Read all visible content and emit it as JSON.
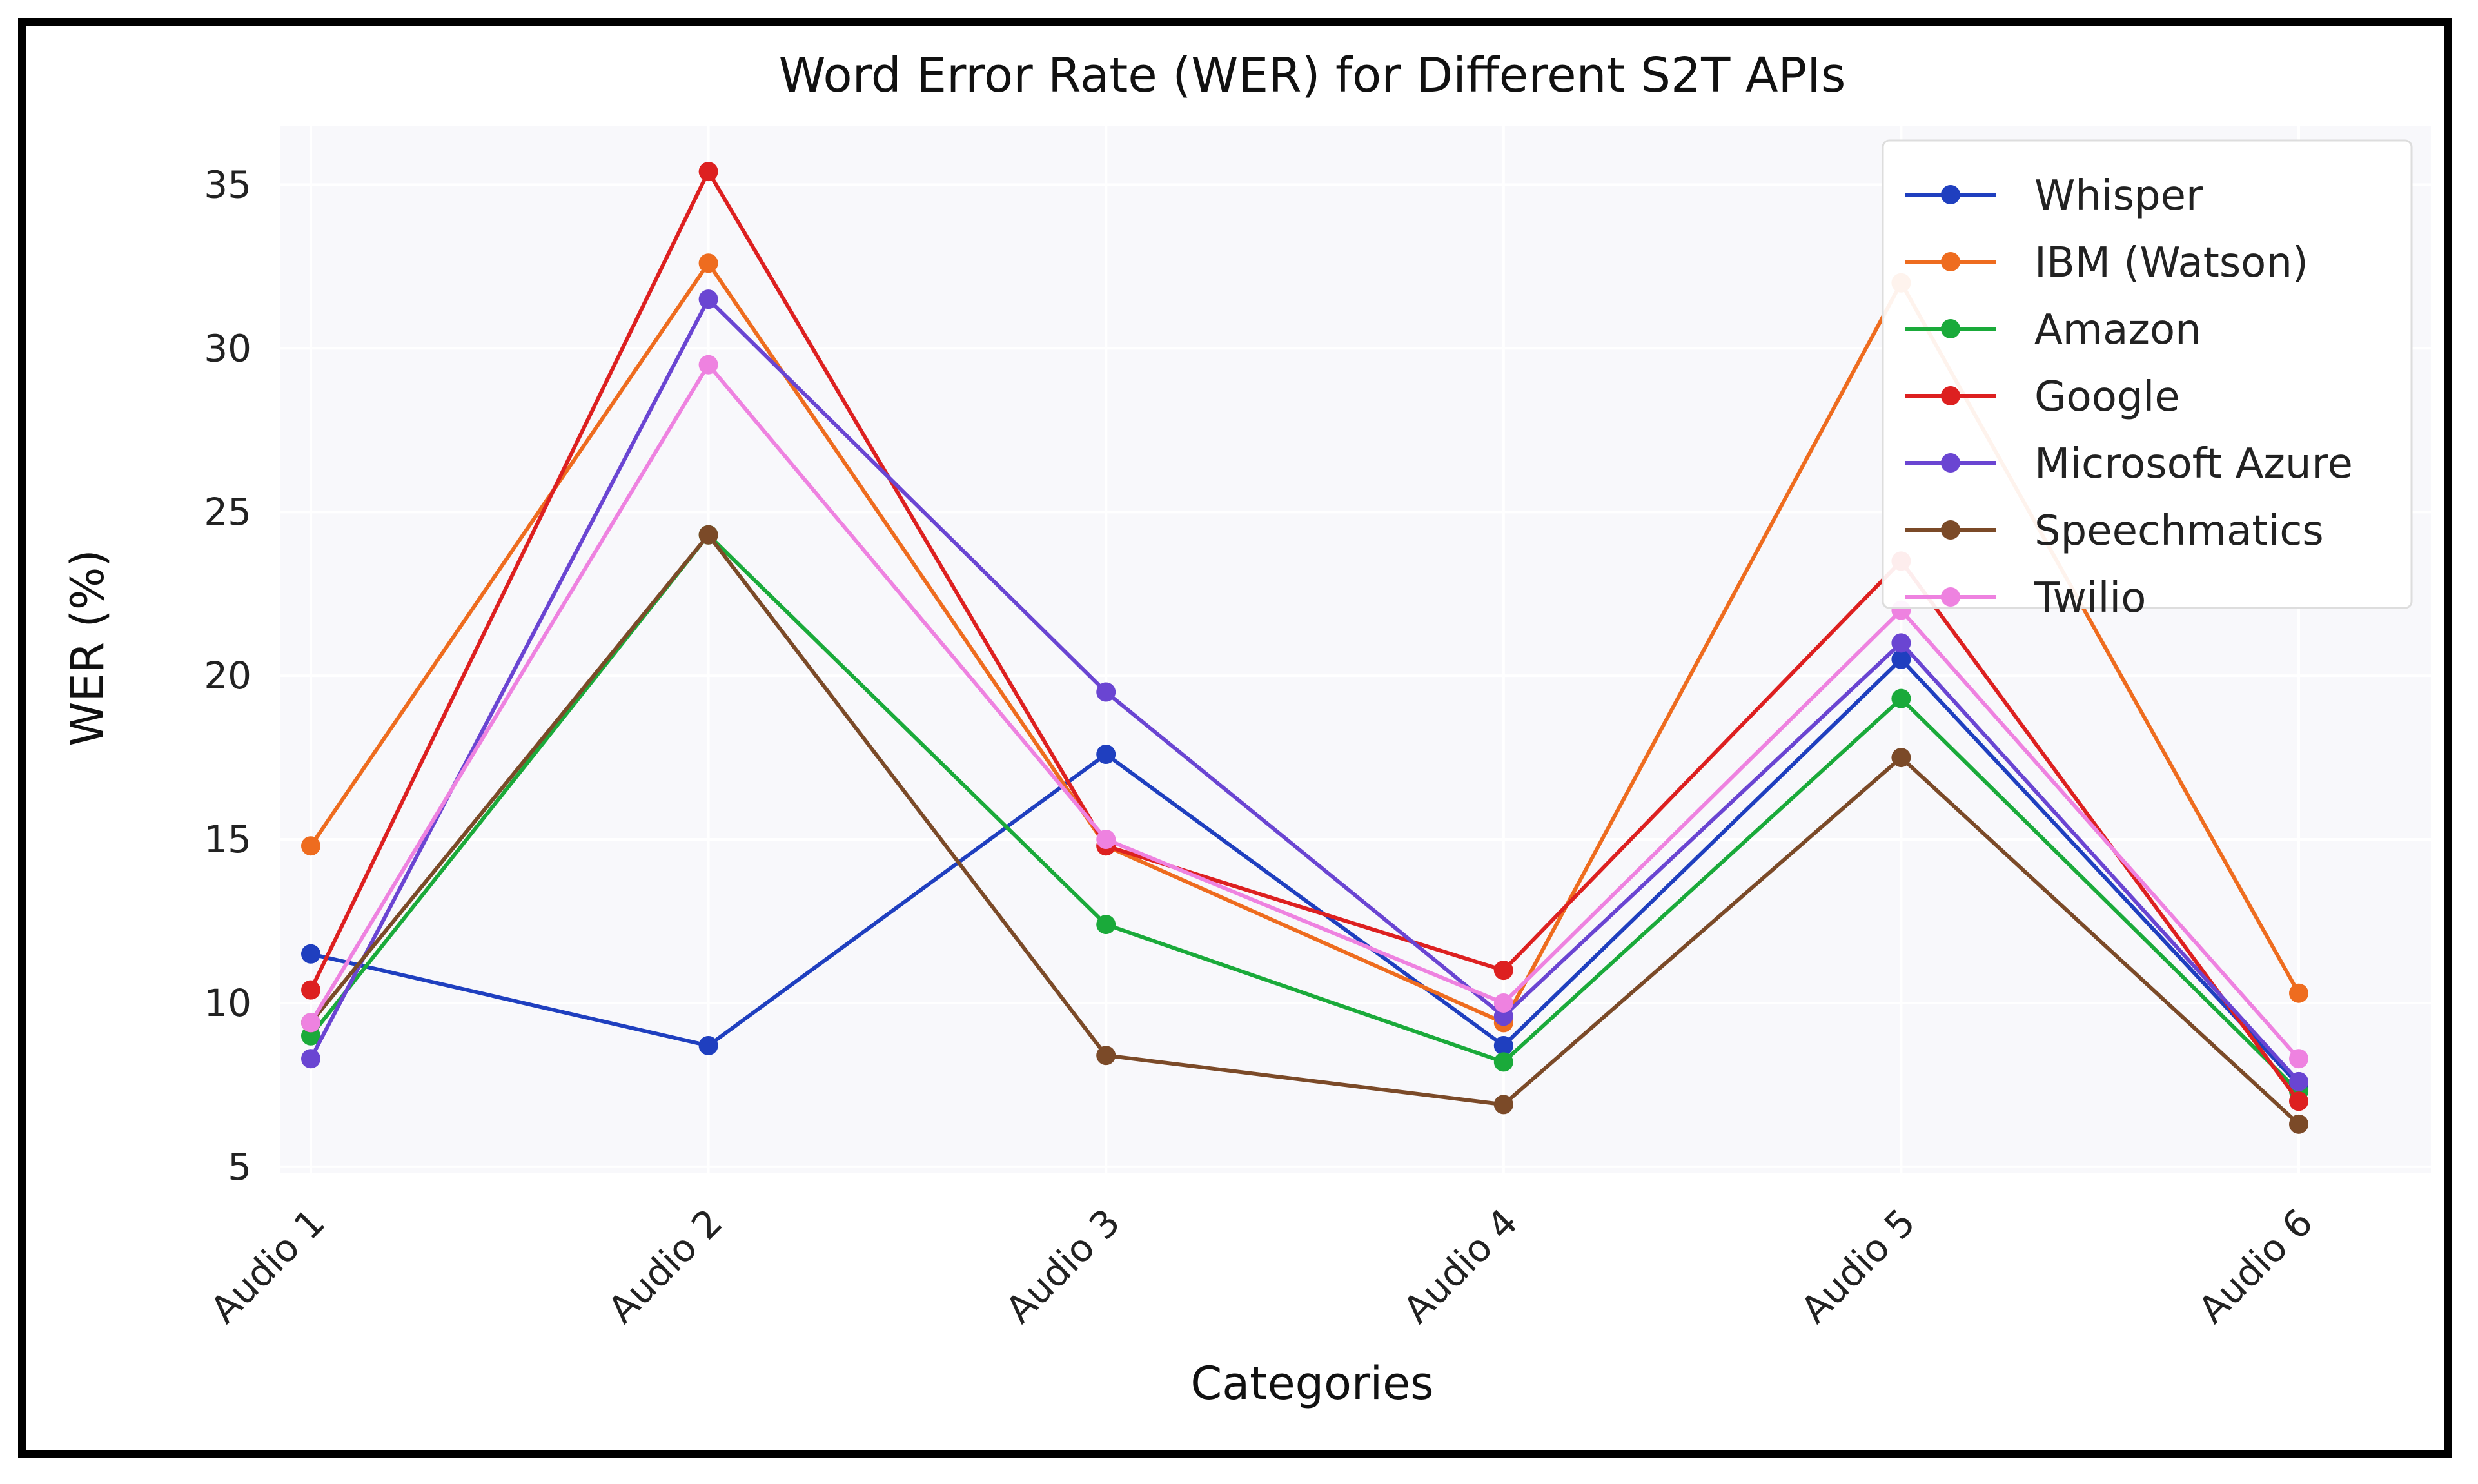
{
  "chart_data": {
    "type": "line",
    "title": "Word Error Rate (WER) for Different S2T APIs",
    "xlabel": "Categories",
    "ylabel": "WER (%)",
    "categories": [
      "Audio 1",
      "Audio 2",
      "Audio 3",
      "Audio 4",
      "Audio 5",
      "Audio 6"
    ],
    "ylim": [
      4.8,
      36.8
    ],
    "yticks": [
      5,
      10,
      15,
      20,
      25,
      30,
      35
    ],
    "grid": true,
    "legend_position": "top-right",
    "series": [
      {
        "name": "Whisper",
        "color": "#1f3fbf",
        "values": [
          11.5,
          8.7,
          17.6,
          8.7,
          20.5,
          7.5
        ]
      },
      {
        "name": "IBM (Watson)",
        "color": "#ee6c1f",
        "values": [
          14.8,
          32.6,
          14.8,
          9.4,
          32.0,
          10.3
        ]
      },
      {
        "name": "Amazon",
        "color": "#1aaa3a",
        "values": [
          9.0,
          24.3,
          12.4,
          8.2,
          19.3,
          7.3
        ]
      },
      {
        "name": "Google",
        "color": "#dd2020",
        "values": [
          10.4,
          35.4,
          14.8,
          11.0,
          23.5,
          7.0
        ]
      },
      {
        "name": "Microsoft Azure",
        "color": "#6a45d2",
        "values": [
          8.3,
          31.5,
          19.5,
          9.6,
          21.0,
          7.6
        ]
      },
      {
        "name": "Speechmatics",
        "color": "#7b4a28",
        "values": [
          9.4,
          24.3,
          8.4,
          6.9,
          17.5,
          6.3
        ]
      },
      {
        "name": "Twilio",
        "color": "#ee82e0",
        "values": [
          9.4,
          29.5,
          15.0,
          10.0,
          22.0,
          8.3
        ]
      }
    ]
  }
}
